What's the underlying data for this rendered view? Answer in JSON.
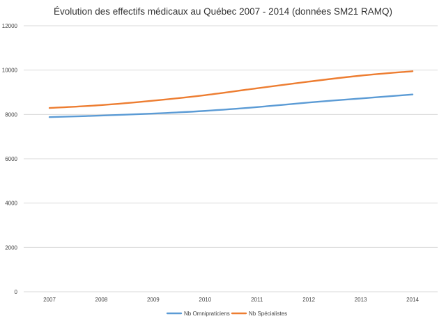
{
  "chart_data": {
    "type": "line",
    "title": "Évolution des effectifs médicaux au Québec 2007 - 2014 (données SM21 RAMQ)",
    "xlabel": "",
    "ylabel": "",
    "categories": [
      "2007",
      "2008",
      "2009",
      "2010",
      "2011",
      "2012",
      "2013",
      "2014"
    ],
    "ylim": [
      0,
      12000
    ],
    "yticks": [
      0,
      2000,
      4000,
      6000,
      8000,
      10000,
      12000
    ],
    "ytick_labels": [
      "0",
      "2000",
      "4000",
      "6000",
      "8000",
      "10000",
      "12000"
    ],
    "grid": true,
    "legend_position": "bottom",
    "series": [
      {
        "name": "Nb Omnipraticiens",
        "color": "#5b9bd5",
        "values": [
          7880,
          7950,
          8040,
          8160,
          8330,
          8540,
          8720,
          8900
        ]
      },
      {
        "name": "Nb Spécialistes",
        "color": "#ed7d31",
        "values": [
          8290,
          8420,
          8620,
          8870,
          9180,
          9480,
          9750,
          9950
        ]
      }
    ]
  }
}
